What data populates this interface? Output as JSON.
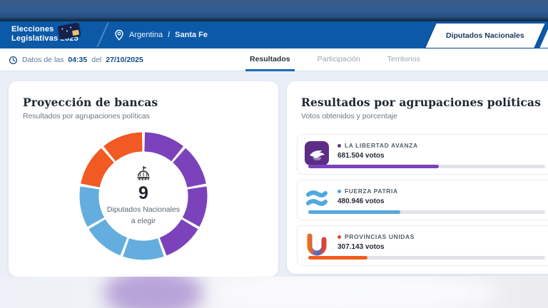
{
  "top_nav": {
    "logo_line1": "Elecciones",
    "logo_line2": "Legislativas 2025",
    "breadcrumb": {
      "country": "Argentina",
      "separator": "/",
      "district": "Santa Fe"
    },
    "category_button": "Diputados Nacionales"
  },
  "status_bar": {
    "prefix": "Datos de las",
    "time": "04:35",
    "middle": "del",
    "date": "27/10/2025",
    "tabs": [
      {
        "label": "Resultados",
        "active": true
      },
      {
        "label": "Participación",
        "active": false
      },
      {
        "label": "Territorios",
        "active": false
      }
    ]
  },
  "seats_card": {
    "title": "Proyección de bancas",
    "subtitle": "Resultados por agrupaciones políticas",
    "total": "9",
    "caption_line1": "Diputados Nacionales",
    "caption_line2": "a elegir"
  },
  "results_card": {
    "title": "Resultados por agrupaciones políticas",
    "subtitle": "Votos obtenidos y porcentaje",
    "parties": [
      {
        "name": "LA LIBERTAD AVANZA",
        "votes": "681.504 votos",
        "color": "#7b42bc",
        "bullet": "#5b3a8e",
        "bar_percent": 55
      },
      {
        "name": "FUERZA PATRIA",
        "votes": "480.946 votos",
        "color": "#56a8dc",
        "bullet": "#4aa3dc",
        "bar_percent": 39
      },
      {
        "name": "PROVINCIAS UNIDAS",
        "votes": "307.143 votos",
        "color": "#f25c1d",
        "bullet": "#e8431f",
        "bar_percent": 25
      }
    ]
  },
  "chart_data": [
    {
      "type": "pie",
      "title": "Proyección de bancas",
      "subtitle": "Resultados por agrupaciones políticas",
      "center_total": 9,
      "center_caption": "Diputados Nacionales a elegir",
      "series": [
        {
          "name": "La Libertad Avanza",
          "seats": 4,
          "color": "#7b42bc"
        },
        {
          "name": "Fuerza Patria",
          "seats": 3,
          "color": "#63aede"
        },
        {
          "name": "Provincias Unidas",
          "seats": 2,
          "color": "#f15a22"
        }
      ],
      "layout": {
        "donut": true,
        "segment_gap_deg": 2.6,
        "start_angle": "top",
        "direction": "clockwise"
      }
    },
    {
      "type": "bar",
      "title": "Resultados por agrupaciones políticas",
      "subtitle": "Votos obtenidos y porcentaje",
      "categories": [
        "LA LIBERTAD AVANZA",
        "FUERZA PATRIA",
        "PROVINCIAS UNIDAS"
      ],
      "values": [
        681504,
        480946,
        307143
      ],
      "value_labels": [
        "681.504 votos",
        "480.946 votos",
        "307.143 votos"
      ],
      "bar_fill_percent_of_track": [
        55,
        39,
        25
      ],
      "colors": [
        "#7b42bc",
        "#56a8dc",
        "#f25c1d"
      ],
      "layout": {
        "orientation": "horizontal",
        "track_color": "#e2e3e9"
      }
    }
  ]
}
